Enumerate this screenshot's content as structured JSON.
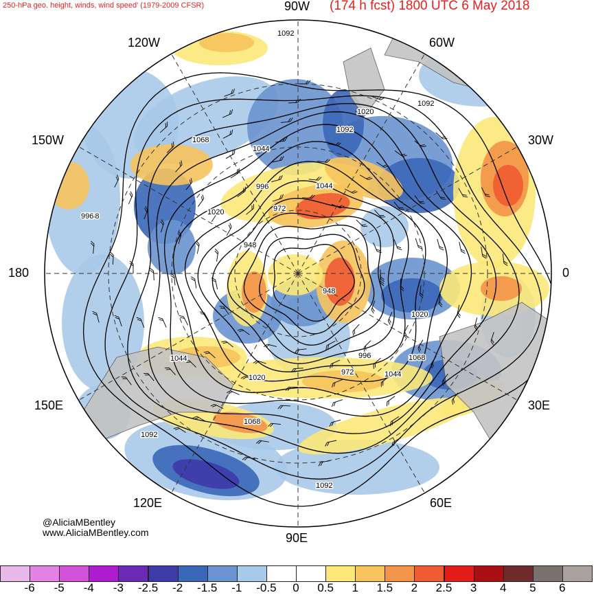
{
  "title": {
    "left": "250-hPa geo. height, winds, wind speed' (1979-2009 CFSR)",
    "right": "(174 h fcst) 1800 UTC 6 May 2018"
  },
  "meridian_labels": {
    "top": "90W",
    "top_left": "120W",
    "top_right": "60W",
    "upper_left": "150W",
    "upper_right": "30W",
    "left": "180",
    "right": "0",
    "lower_left": "150E",
    "lower_right": "30E",
    "bottom_left": "120E",
    "bottom_right": "60E",
    "bottom": "90E"
  },
  "contour_labels": [
    "1092",
    "1068",
    "1044",
    "1020",
    "996",
    "972",
    "948",
    "1092",
    "1068",
    "1044",
    "1020",
    "996",
    "972",
    "948",
    "1020",
    "1044",
    "1068",
    "1092",
    "1092",
    "1068",
    "1020",
    "1092",
    "1044",
    "996"
  ],
  "credit": {
    "handle": "@AliciaMBentley",
    "site": "www.AliciaMBentley.com"
  },
  "colorbar": {
    "labels": [
      "-6",
      "-5",
      "-4",
      "-3",
      "-2.5",
      "-2",
      "-1.5",
      "-1",
      "-0.5",
      "0",
      "0.5",
      "1",
      "1.5",
      "2",
      "2.5",
      "3",
      "4",
      "5",
      "6"
    ],
    "colors": [
      "#e9b9e9",
      "#e383e3",
      "#d352d9",
      "#ae1ccf",
      "#6b2ab3",
      "#3e3aa8",
      "#3b67b8",
      "#6a93cf",
      "#a9c9e8",
      "#ffffff",
      "#ffffff",
      "#fbe878",
      "#f6c35d",
      "#f39448",
      "#ef5b32",
      "#e41d1a",
      "#a90f13",
      "#6f2b2a",
      "#7b7070",
      "#aaa0a0"
    ]
  },
  "icons": {
    "map": "polar-stereographic-map"
  }
}
